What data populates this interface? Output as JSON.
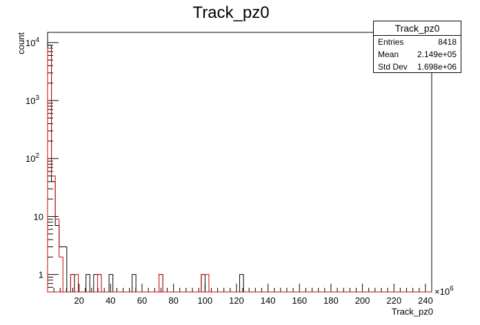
{
  "chart_data": {
    "type": "histogram",
    "title": "Track_pz0",
    "xlabel": "Track_pz0",
    "ylabel": "count",
    "x_multiplier": "×10^6",
    "x_multiplier_exponent": "6",
    "xlim": [
      0,
      244
    ],
    "ylim": [
      0.5,
      15000
    ],
    "yscale": "log",
    "bin_width": 2.44,
    "x_ticks": [
      20,
      40,
      60,
      80,
      100,
      120,
      140,
      160,
      180,
      200,
      220,
      240
    ],
    "y_ticks": [
      {
        "value": 1,
        "base": "1",
        "exp": ""
      },
      {
        "value": 10,
        "base": "10",
        "exp": ""
      },
      {
        "value": 100,
        "base": "10",
        "exp": "2"
      },
      {
        "value": 1000,
        "base": "10",
        "exp": "3"
      },
      {
        "value": 10000,
        "base": "10",
        "exp": "4"
      }
    ],
    "series": [
      {
        "color": "#000000",
        "bins": [
          {
            "x": 0,
            "count": 9000
          },
          {
            "x": 2.44,
            "count": 40
          },
          {
            "x": 4.88,
            "count": 7
          },
          {
            "x": 7.32,
            "count": 3
          },
          {
            "x": 9.76,
            "count": 3
          },
          {
            "x": 14.64,
            "count": 1
          },
          {
            "x": 24.4,
            "count": 1
          },
          {
            "x": 29.28,
            "count": 1
          },
          {
            "x": 31.72,
            "count": 1
          },
          {
            "x": 39.04,
            "count": 1
          },
          {
            "x": 53.68,
            "count": 1
          },
          {
            "x": 70.76,
            "count": 1
          },
          {
            "x": 97.6,
            "count": 1
          },
          {
            "x": 122.0,
            "count": 1
          }
        ]
      },
      {
        "color": "#cc0000",
        "bins": [
          {
            "x": 0,
            "count": 8000
          },
          {
            "x": 2.44,
            "count": 50
          },
          {
            "x": 4.88,
            "count": 9
          },
          {
            "x": 7.32,
            "count": 2
          },
          {
            "x": 14.64,
            "count": 1
          },
          {
            "x": 17.08,
            "count": 1
          },
          {
            "x": 31.72,
            "count": 1
          },
          {
            "x": 70.76,
            "count": 1
          },
          {
            "x": 97.6,
            "count": 1
          },
          {
            "x": 100.04,
            "count": 1
          }
        ]
      }
    ],
    "stats": {
      "title": "Track_pz0",
      "rows": [
        {
          "label": "Entries",
          "value": "8418"
        },
        {
          "label": "Mean",
          "value": "2.149e+05"
        },
        {
          "label": "Std Dev",
          "value": "1.698e+06"
        }
      ]
    }
  }
}
